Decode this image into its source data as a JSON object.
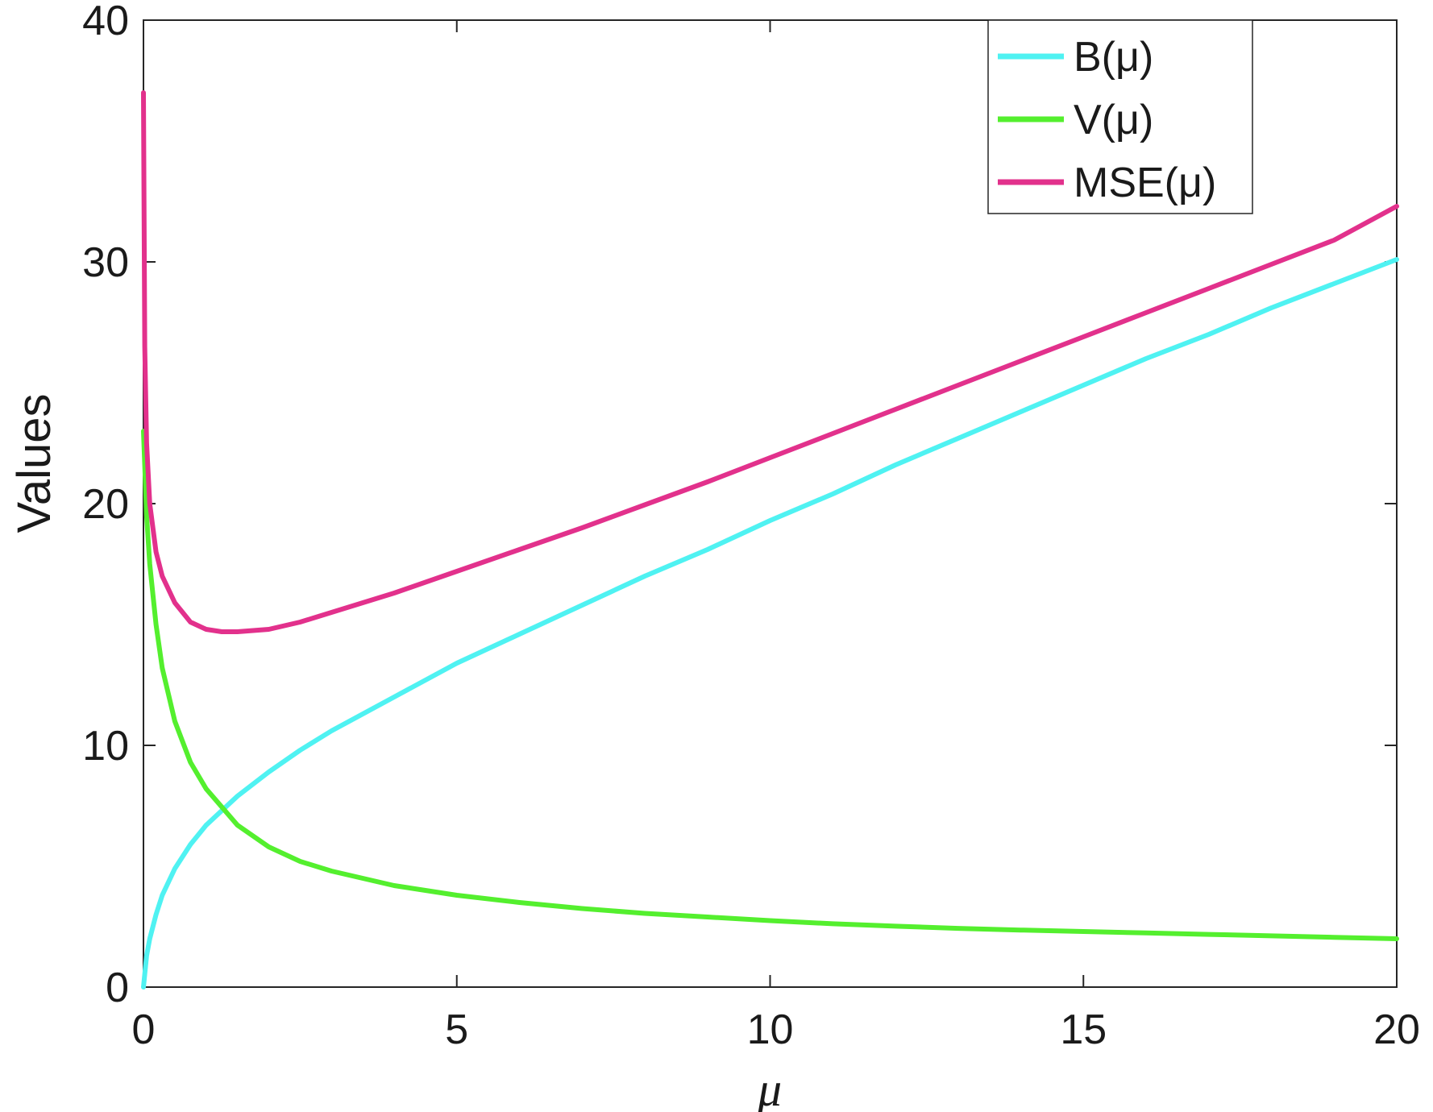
{
  "chart_data": {
    "type": "line",
    "title": "",
    "xlabel": "μ",
    "ylabel": "Values",
    "xlim": [
      0,
      20
    ],
    "ylim": [
      0,
      40
    ],
    "xticks": [
      "0",
      "5",
      "10",
      "15",
      "20"
    ],
    "yticks": [
      "0",
      "10",
      "20",
      "30",
      "40"
    ],
    "grid": false,
    "legend_position": "top-right",
    "series": [
      {
        "name": "B(μ)",
        "color": "#4ff2f2",
        "x": [
          0,
          0.05,
          0.1,
          0.2,
          0.3,
          0.5,
          0.75,
          1,
          1.5,
          2,
          2.5,
          3,
          4,
          5,
          6,
          7,
          8,
          9,
          10,
          11,
          12,
          13,
          14,
          15,
          16,
          17,
          18,
          19,
          20
        ],
        "y": [
          0,
          1.3,
          2.0,
          3.0,
          3.8,
          4.9,
          5.9,
          6.7,
          7.9,
          8.9,
          9.8,
          10.6,
          12.0,
          13.4,
          14.6,
          15.8,
          17.0,
          18.1,
          19.3,
          20.4,
          21.6,
          22.7,
          23.8,
          24.9,
          26.0,
          27.0,
          28.1,
          29.1,
          30.1
        ]
      },
      {
        "name": "V(μ)",
        "color": "#54ef2e",
        "x": [
          0,
          0.05,
          0.1,
          0.2,
          0.3,
          0.5,
          0.75,
          1,
          1.5,
          2,
          2.5,
          3,
          4,
          5,
          6,
          7,
          8,
          9,
          10,
          11,
          12,
          13,
          14,
          15,
          16,
          17,
          18,
          19,
          20
        ],
        "y": [
          23.0,
          19.5,
          17.5,
          15.0,
          13.2,
          11.0,
          9.3,
          8.2,
          6.7,
          5.8,
          5.2,
          4.8,
          4.2,
          3.8,
          3.5,
          3.25,
          3.05,
          2.9,
          2.75,
          2.62,
          2.52,
          2.43,
          2.36,
          2.3,
          2.24,
          2.18,
          2.12,
          2.06,
          2.0
        ]
      },
      {
        "name": "MSE(μ)",
        "color": "#e2318c",
        "x": [
          0,
          0.02,
          0.05,
          0.1,
          0.2,
          0.3,
          0.5,
          0.75,
          1,
          1.25,
          1.5,
          2,
          2.5,
          3,
          4,
          5,
          6,
          7,
          8,
          9,
          10,
          11,
          12,
          13,
          14,
          15,
          16,
          17,
          18,
          19,
          20
        ],
        "y": [
          37.0,
          26.5,
          22.5,
          20.0,
          18.0,
          17.0,
          15.9,
          15.1,
          14.8,
          14.7,
          14.7,
          14.8,
          15.1,
          15.5,
          16.3,
          17.2,
          18.1,
          19.0,
          19.95,
          20.9,
          21.9,
          22.9,
          23.9,
          24.9,
          25.9,
          26.9,
          27.9,
          28.9,
          29.9,
          30.9,
          32.3
        ]
      }
    ]
  }
}
